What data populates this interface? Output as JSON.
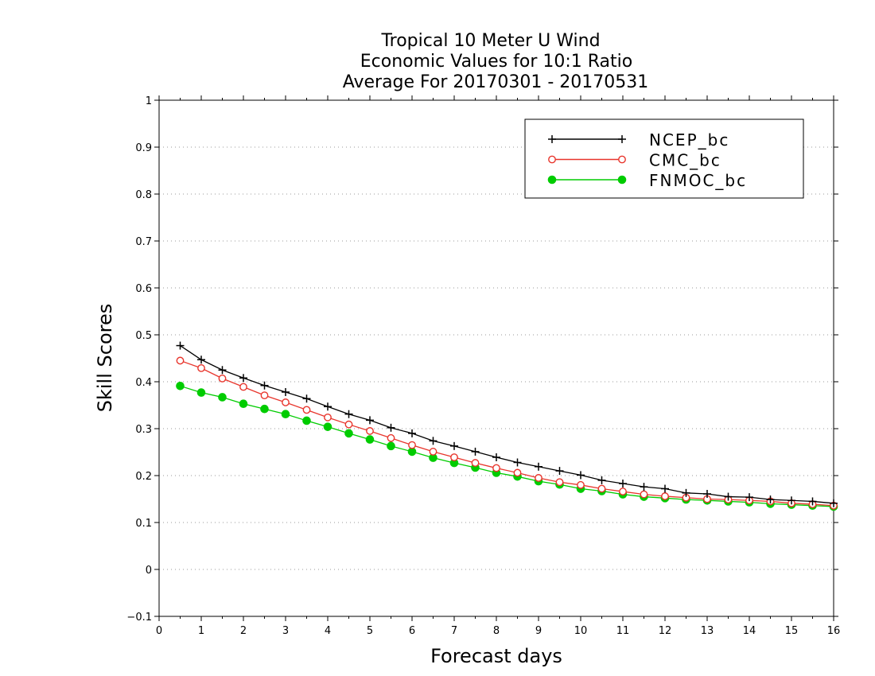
{
  "chart_data": {
    "type": "line",
    "title": [
      "Tropical 10 Meter U Wind",
      "Economic Values for 10:1 Ratio",
      "Average For 20170301 - 20170531"
    ],
    "xlabel": "Forecast days",
    "ylabel": "Skill Scores",
    "xlim": [
      0,
      16
    ],
    "ylim": [
      -0.1,
      1
    ],
    "xticks": [
      "0",
      "1",
      "2",
      "3",
      "4",
      "5",
      "6",
      "7",
      "8",
      "9",
      "10",
      "11",
      "12",
      "13",
      "14",
      "15",
      "16"
    ],
    "yticks": [
      "−0.1",
      "0",
      "0.1",
      "0.2",
      "0.3",
      "0.4",
      "0.5",
      "0.6",
      "0.7",
      "0.8",
      "0.9",
      "1"
    ],
    "grid": true,
    "legend_position": "top-right",
    "x": [
      0.5,
      1,
      1.5,
      2,
      2.5,
      3,
      3.5,
      4,
      4.5,
      5,
      5.5,
      6,
      6.5,
      7,
      7.5,
      8,
      8.5,
      9,
      9.5,
      10,
      10.5,
      11,
      11.5,
      12,
      12.5,
      13,
      13.5,
      14,
      14.5,
      15,
      15.5,
      16
    ],
    "series": [
      {
        "name": "NCEP_bc",
        "color": "#000000",
        "marker": "plus",
        "values": [
          0.477,
          0.447,
          0.425,
          0.408,
          0.392,
          0.378,
          0.364,
          0.347,
          0.331,
          0.318,
          0.302,
          0.29,
          0.274,
          0.263,
          0.251,
          0.239,
          0.228,
          0.219,
          0.21,
          0.201,
          0.19,
          0.183,
          0.176,
          0.172,
          0.163,
          0.161,
          0.155,
          0.154,
          0.149,
          0.147,
          0.145,
          0.141
        ]
      },
      {
        "name": "CMC_bc",
        "color": "#e8352c",
        "marker": "open-circle",
        "values": [
          0.445,
          0.429,
          0.407,
          0.389,
          0.371,
          0.356,
          0.34,
          0.324,
          0.309,
          0.295,
          0.28,
          0.265,
          0.251,
          0.239,
          0.227,
          0.216,
          0.206,
          0.195,
          0.186,
          0.18,
          0.172,
          0.166,
          0.16,
          0.156,
          0.153,
          0.15,
          0.149,
          0.147,
          0.145,
          0.141,
          0.139,
          0.136
        ]
      },
      {
        "name": "FNMOC_bc",
        "color": "#00cc00",
        "marker": "filled-circle",
        "values": [
          0.391,
          0.377,
          0.367,
          0.353,
          0.342,
          0.331,
          0.317,
          0.304,
          0.29,
          0.277,
          0.263,
          0.251,
          0.238,
          0.227,
          0.217,
          0.206,
          0.198,
          0.188,
          0.181,
          0.172,
          0.167,
          0.16,
          0.155,
          0.152,
          0.149,
          0.147,
          0.145,
          0.143,
          0.14,
          0.138,
          0.136,
          0.134
        ]
      }
    ]
  }
}
